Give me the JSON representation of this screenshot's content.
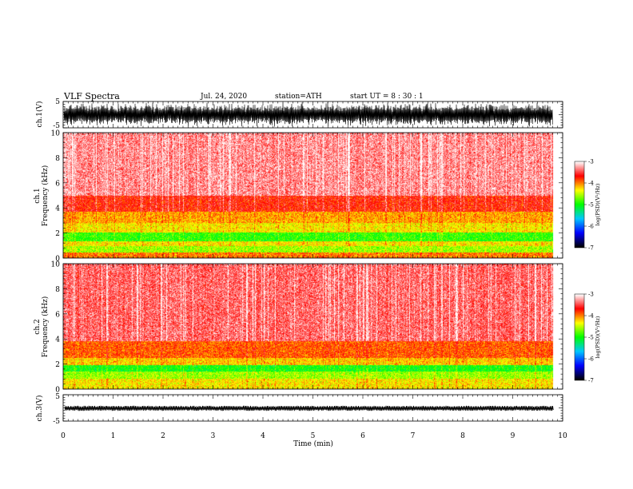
{
  "header": {
    "title": "VLF  Spectra",
    "date": "Jul.  24, 2020",
    "station": "station=ATH",
    "start": "start  UT  =    8  : 30 : 1"
  },
  "chart_data": [
    {
      "type": "line",
      "name": "ch1-waveform",
      "ylabel": "ch.1(V)",
      "ylim": [
        -5,
        5
      ],
      "yticks": [
        "5",
        "-5"
      ],
      "xlim": [
        0,
        10
      ]
    },
    {
      "type": "heatmap",
      "name": "ch1-spectrogram",
      "ylabel": "ch.1\nFrequency  (kHz)",
      "ylabel_lines": [
        "ch.1",
        "Frequency  (kHz)"
      ],
      "ylim": [
        0,
        10
      ],
      "yticks": [
        "0",
        "2",
        "4",
        "6",
        "8",
        "10"
      ],
      "xlim": [
        0,
        10
      ],
      "data_end_min": 9.8,
      "bands_khz": [
        {
          "from": 0.0,
          "to": 0.4,
          "level": -4.0
        },
        {
          "from": 0.4,
          "to": 0.9,
          "level": -4.6
        },
        {
          "from": 0.9,
          "to": 1.3,
          "level": -4.3
        },
        {
          "from": 1.3,
          "to": 2.0,
          "level": -4.9
        },
        {
          "from": 2.0,
          "to": 2.8,
          "level": -4.3
        },
        {
          "from": 2.8,
          "to": 3.7,
          "level": -4.1
        },
        {
          "from": 3.7,
          "to": 5.0,
          "level": -3.7
        },
        {
          "from": 5.0,
          "to": 10.0,
          "level": -3.3
        }
      ],
      "colorbar": {
        "label": "log(PSD)(V²/Hz)",
        "ticks": [
          "-3",
          "-4",
          "-5",
          "-6",
          "-7"
        ],
        "range": [
          -7,
          -3
        ]
      }
    },
    {
      "type": "heatmap",
      "name": "ch2-spectrogram",
      "ylabel": "ch.2\nFrequency  (kHz)",
      "ylabel_lines": [
        "ch.2",
        "Frequency  (kHz)"
      ],
      "ylim": [
        0,
        10
      ],
      "yticks": [
        "0",
        "2",
        "4",
        "6",
        "8",
        "10"
      ],
      "xlim": [
        0,
        10
      ],
      "data_end_min": 9.8,
      "bands_khz": [
        {
          "from": 0.0,
          "to": 0.8,
          "level": -4.3
        },
        {
          "from": 0.8,
          "to": 1.4,
          "level": -4.6
        },
        {
          "from": 1.4,
          "to": 1.9,
          "level": -5.0
        },
        {
          "from": 1.9,
          "to": 2.5,
          "level": -4.2
        },
        {
          "from": 2.5,
          "to": 3.8,
          "level": -3.9
        },
        {
          "from": 3.8,
          "to": 10.0,
          "level": -3.4
        }
      ],
      "colorbar": {
        "label": "log(PSD)(V²/Hz)",
        "ticks": [
          "-3",
          "-4",
          "-5",
          "-6",
          "-7"
        ],
        "range": [
          -7,
          -3
        ]
      }
    },
    {
      "type": "line",
      "name": "ch3-waveform",
      "ylabel": "ch.3(V)",
      "ylim": [
        -5,
        5
      ],
      "yticks": [
        "5",
        "-5"
      ],
      "xlim": [
        0,
        10
      ],
      "xlabel": "Time  (min)",
      "xticks": [
        "0",
        "1",
        "2",
        "3",
        "4",
        "5",
        "6",
        "7",
        "8",
        "9",
        "10"
      ]
    }
  ],
  "colors": {
    "colormap": [
      "#000000",
      "#0000ff",
      "#00c8ff",
      "#00ff00",
      "#ffff00",
      "#ff0000",
      "#ffffff"
    ]
  }
}
